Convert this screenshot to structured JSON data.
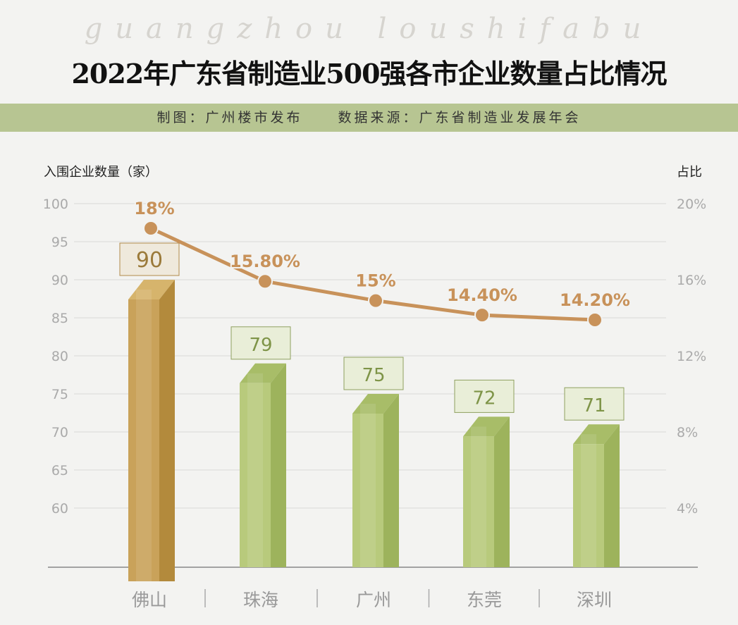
{
  "watermark": "guangzhou loushifabu",
  "header": {
    "title": "2022年广东省制造业500强各市企业数量占比情况",
    "credit": "制图：广州楼市发布",
    "source": "数据来源：广东省制造业发展年会"
  },
  "chart_data": {
    "type": "bar+line",
    "title": "2022年广东省制造业500强各市企业数量占比情况",
    "ylabel": "入围企业数量（家）",
    "y2label": "占比",
    "categories": [
      "佛山",
      "珠海",
      "广州",
      "东莞",
      "深圳"
    ],
    "series": [
      {
        "name": "入围企业数量",
        "type": "bar",
        "values": [
          90,
          79,
          75,
          72,
          71
        ],
        "labels": [
          "90",
          "79",
          "75",
          "72",
          "71"
        ]
      },
      {
        "name": "占比",
        "type": "line",
        "values": [
          18,
          15.8,
          15,
          14.4,
          14.2
        ],
        "labels": [
          "18%",
          "15.80%",
          "15%",
          "14.40%",
          "14.20%"
        ]
      }
    ],
    "yticks": [
      "100",
      "95",
      "90",
      "85",
      "80",
      "75",
      "70",
      "65",
      "60"
    ],
    "ytick_values": [
      100,
      95,
      90,
      85,
      80,
      75,
      70,
      65,
      60
    ],
    "y2ticks": [
      "20%",
      "16%",
      "12%",
      "8%",
      "4%"
    ],
    "ylim": [
      60,
      100
    ],
    "grid": true,
    "colors": {
      "highlight": "#c9a25a",
      "bar": "#b5c878",
      "line": "#c8925a"
    }
  }
}
